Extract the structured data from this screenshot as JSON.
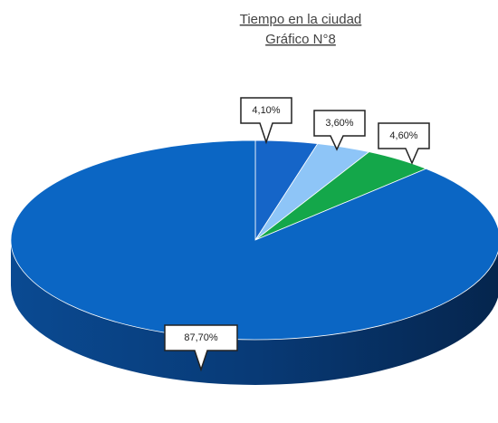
{
  "chart_data": {
    "type": "pie3d",
    "title": "Tiempo en la ciudad",
    "subtitle": "Gráfico N°8",
    "values": [
      4.1,
      3.6,
      4.6,
      87.7
    ],
    "value_labels": [
      "4,10%",
      "3,60%",
      "4,60%",
      "87,70%"
    ],
    "colors": [
      "#1565c8",
      "#8ec5f7",
      "#14a74a",
      "#0b66c4"
    ]
  }
}
